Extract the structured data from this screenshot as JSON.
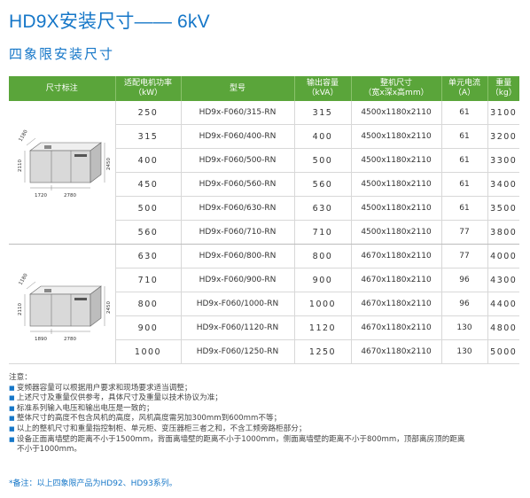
{
  "title": "HD9X安装尺寸—— 6kV",
  "subtitle": "四象限安装尺寸",
  "table": {
    "headers": [
      "尺寸标注",
      "适配电机功率\n（kW）",
      "型号",
      "输出容量\n（kVA）",
      "整机尺寸\n（宽x深x高mm）",
      "单元电流\n（A）",
      "重量\n（kg）"
    ],
    "rows": [
      {
        "power": "250",
        "model": "HD9x-F060/315-RN",
        "capacity": "315",
        "size": "4500x1180x2110",
        "current": "61",
        "weight": "3100"
      },
      {
        "power": "315",
        "model": "HD9x-F060/400-RN",
        "capacity": "400",
        "size": "4500x1180x2110",
        "current": "61",
        "weight": "3200"
      },
      {
        "power": "400",
        "model": "HD9x-F060/500-RN",
        "capacity": "500",
        "size": "4500x1180x2110",
        "current": "61",
        "weight": "3300"
      },
      {
        "power": "450",
        "model": "HD9x-F060/560-RN",
        "capacity": "560",
        "size": "4500x1180x2110",
        "current": "61",
        "weight": "3400"
      },
      {
        "power": "500",
        "model": "HD9x-F060/630-RN",
        "capacity": "630",
        "size": "4500x1180x2110",
        "current": "61",
        "weight": "3500"
      },
      {
        "power": "560",
        "model": "HD9x-F060/710-RN",
        "capacity": "710",
        "size": "4500x1180x2110",
        "current": "77",
        "weight": "3800"
      },
      {
        "power": "630",
        "model": "HD9x-F060/800-RN",
        "capacity": "800",
        "size": "4670x1180x2110",
        "current": "77",
        "weight": "4000"
      },
      {
        "power": "710",
        "model": "HD9x-F060/900-RN",
        "capacity": "900",
        "size": "4670x1180x2110",
        "current": "96",
        "weight": "4300"
      },
      {
        "power": "800",
        "model": "HD9x-F060/1000-RN",
        "capacity": "1000",
        "size": "4670x1180x2110",
        "current": "96",
        "weight": "4400"
      },
      {
        "power": "900",
        "model": "HD9x-F060/1120-RN",
        "capacity": "1120",
        "size": "4670x1180x2110",
        "current": "130",
        "weight": "4800"
      },
      {
        "power": "1000",
        "model": "HD9x-F060/1250-RN",
        "capacity": "1250",
        "size": "4670x1180x2110",
        "current": "130",
        "weight": "5000"
      }
    ]
  },
  "diagrams": [
    {
      "depth": "1180",
      "height": "2110",
      "total_height": "2450",
      "width_a": "1720",
      "width_b": "2780"
    },
    {
      "depth": "1180",
      "height": "2110",
      "total_height": "2450",
      "width_a": "1890",
      "width_b": "2780"
    }
  ],
  "notes": {
    "heading": "注意：",
    "items": [
      "变频器容量可以根据用户要求和现场要求适当调整；",
      "上述尺寸及重量仅供参考，具体尺寸及重量以技术协议为准；",
      "标准系列输入电压和输出电压是一致的；",
      "整体尺寸的高度不包含风机的高度，风机高度需另加300mm到600mm不等；",
      "以上的整机尺寸和重量指控制柜、单元柜、变压器柜三者之和，不含工频旁路柜部分；",
      "设备正面离墙壁的距离不小于1500mm，背面离墙壁的距离不小于1000mm，侧面离墙壁的距离不小于800mm，顶部离房顶的距离"
    ],
    "continuation": "不小于1000mm。"
  },
  "remark": "*备注：以上四象限产品为HD92、HD93系列。",
  "colors": {
    "accent": "#1677c8",
    "header_bg": "#5aa53a"
  }
}
